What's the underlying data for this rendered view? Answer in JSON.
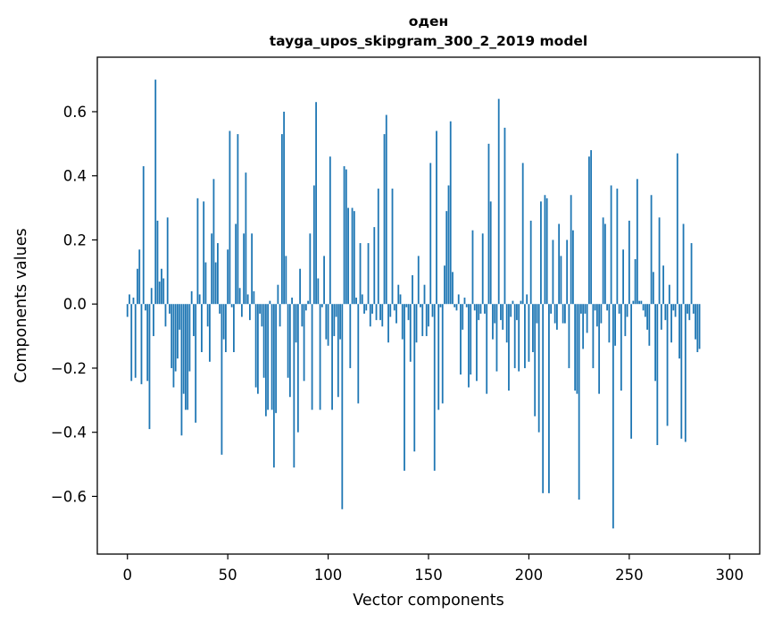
{
  "chart_data": {
    "type": "bar",
    "title": "оден",
    "subtitle": "tayga_upos_skipgram_300_2_2019 model",
    "xlabel": "Vector components",
    "ylabel": "Components values",
    "xlim": [
      -15,
      315
    ],
    "ylim": [
      -0.78,
      0.77
    ],
    "xticks": [
      0,
      50,
      100,
      150,
      200,
      250,
      300
    ],
    "xtick_labels": [
      "0",
      "50",
      "100",
      "150",
      "200",
      "250",
      "300"
    ],
    "yticks": [
      -0.6,
      -0.4,
      -0.2,
      0.0,
      0.2,
      0.4,
      0.6
    ],
    "ytick_labels": [
      "−0.6",
      "−0.4",
      "−0.2",
      "0.0",
      "0.2",
      "0.4",
      "0.6"
    ],
    "bar_color": "#1f77b4",
    "x": "0..299",
    "values": [
      -0.04,
      0.03,
      -0.24,
      0.02,
      -0.23,
      0.11,
      0.17,
      -0.25,
      0.43,
      -0.02,
      -0.24,
      -0.39,
      0.05,
      -0.1,
      0.7,
      0.26,
      0.07,
      0.11,
      0.08,
      -0.07,
      0.27,
      -0.03,
      -0.2,
      -0.26,
      -0.21,
      -0.17,
      -0.08,
      -0.41,
      -0.28,
      -0.33,
      -0.33,
      -0.21,
      0.04,
      -0.1,
      -0.37,
      0.33,
      0.03,
      -0.15,
      0.32,
      0.13,
      -0.07,
      -0.18,
      0.22,
      0.39,
      0.13,
      0.19,
      -0.03,
      -0.47,
      -0.11,
      -0.15,
      0.17,
      0.54,
      -0.01,
      -0.15,
      0.25,
      0.53,
      0.05,
      -0.04,
      0.22,
      0.41,
      0.03,
      -0.05,
      0.22,
      0.04,
      -0.26,
      -0.28,
      -0.03,
      -0.07,
      -0.23,
      -0.35,
      -0.33,
      0.01,
      -0.33,
      -0.51,
      -0.34,
      0.06,
      -0.07,
      0.53,
      0.6,
      0.15,
      -0.23,
      -0.29,
      0.02,
      -0.51,
      -0.12,
      -0.4,
      0.11,
      -0.07,
      -0.24,
      -0.02,
      0.01,
      0.22,
      -0.33,
      0.37,
      0.63,
      0.08,
      -0.33,
      -0.01,
      0.15,
      -0.11,
      -0.13,
      0.46,
      -0.33,
      -0.1,
      -0.04,
      -0.29,
      -0.11,
      -0.64,
      0.43,
      0.42,
      0.3,
      -0.2,
      0.3,
      0.29,
      0.02,
      -0.31,
      0.19,
      0.03,
      -0.03,
      -0.02,
      0.19,
      -0.07,
      -0.03,
      0.24,
      -0.05,
      0.36,
      -0.05,
      -0.07,
      0.53,
      0.59,
      -0.12,
      -0.04,
      0.36,
      -0.02,
      -0.06,
      0.06,
      0.03,
      -0.11,
      -0.52,
      -0.01,
      -0.05,
      -0.18,
      0.09,
      -0.46,
      -0.12,
      0.15,
      -0.01,
      -0.1,
      0.06,
      -0.1,
      -0.07,
      0.44,
      -0.04,
      -0.52,
      0.54,
      -0.33,
      -0.01,
      -0.31,
      0.12,
      0.29,
      0.37,
      0.57,
      0.1,
      -0.01,
      -0.02,
      0.03,
      -0.22,
      -0.08,
      0.02,
      -0.01,
      -0.26,
      -0.22,
      0.23,
      -0.02,
      -0.24,
      -0.05,
      -0.03,
      0.22,
      -0.03,
      -0.28,
      0.5,
      0.32,
      -0.11,
      -0.06,
      -0.21,
      0.64,
      -0.05,
      -0.08,
      0.55,
      -0.12,
      -0.27,
      -0.04,
      0.01,
      -0.2,
      -0.05,
      -0.21,
      0.01,
      0.44,
      -0.2,
      0.03,
      -0.18,
      0.26,
      -0.15,
      -0.35,
      -0.06,
      -0.4,
      0.32,
      -0.59,
      0.34,
      0.33,
      -0.59,
      -0.03,
      0.2,
      -0.06,
      -0.08,
      0.25,
      0.15,
      -0.06,
      -0.06,
      0.2,
      -0.2,
      0.34,
      0.23,
      -0.27,
      -0.28,
      -0.61,
      -0.03,
      -0.14,
      -0.03,
      -0.09,
      0.46,
      0.48,
      -0.2,
      -0.02,
      -0.07,
      -0.28,
      -0.06,
      0.27,
      0.25,
      -0.02,
      -0.12,
      0.37,
      -0.7,
      -0.13,
      0.36,
      -0.03,
      -0.27,
      0.17,
      -0.1,
      -0.04,
      0.26,
      -0.42,
      0.01,
      0.14,
      0.39,
      0.01,
      0.01,
      -0.02,
      -0.04,
      -0.08,
      -0.13,
      0.34,
      0.1,
      -0.24,
      -0.44,
      0.27,
      -0.08,
      0.12,
      -0.05,
      -0.38,
      0.06,
      -0.12,
      -0.02,
      -0.04,
      0.47,
      -0.17,
      -0.42,
      0.25,
      -0.43,
      -0.03,
      -0.05,
      0.19,
      -0.03,
      -0.11,
      -0.15,
      -0.14
    ]
  }
}
